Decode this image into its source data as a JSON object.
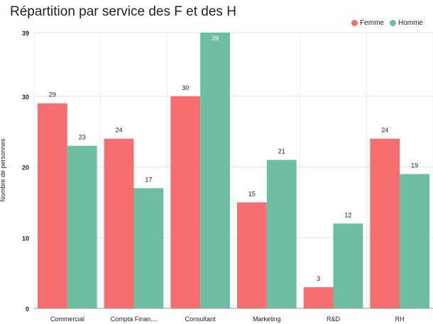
{
  "chart_data": {
    "type": "bar",
    "title": "Répartition par service des F et des H",
    "xlabel": "",
    "ylabel": "Nombre de personnes",
    "categories": [
      "Commercial",
      "Compta Finan…",
      "Consultant",
      "Marketing",
      "R&D",
      "RH"
    ],
    "series": [
      {
        "name": "Femme",
        "color": "#f76e70",
        "values": [
          29,
          24,
          30,
          15,
          3,
          24
        ]
      },
      {
        "name": "Homme",
        "color": "#6dbea2",
        "values": [
          23,
          17,
          39,
          21,
          12,
          19
        ]
      }
    ],
    "yticks": [
      "0",
      "10",
      "20",
      "30",
      "39"
    ],
    "ylim": [
      0,
      39
    ],
    "grid": true,
    "legend_position": "top-right"
  }
}
